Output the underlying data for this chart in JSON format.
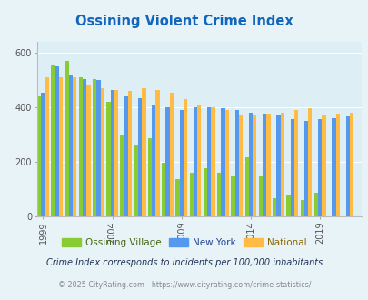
{
  "title": "Ossining Violent Crime Index",
  "title_color": "#1166bb",
  "years": [
    1999,
    2000,
    2001,
    2002,
    2003,
    2004,
    2005,
    2006,
    2007,
    2008,
    2009,
    2010,
    2011,
    2012,
    2013,
    2014,
    2015,
    2016,
    2017,
    2018,
    2019,
    2020,
    2021
  ],
  "ossining": [
    440,
    555,
    570,
    510,
    505,
    420,
    300,
    260,
    285,
    195,
    135,
    160,
    175,
    160,
    145,
    215,
    145,
    65,
    80,
    60,
    85,
    0,
    0
  ],
  "new_york": [
    455,
    550,
    520,
    505,
    500,
    465,
    440,
    435,
    410,
    400,
    390,
    400,
    400,
    395,
    390,
    380,
    375,
    370,
    355,
    350,
    355,
    360,
    365
  ],
  "national": [
    510,
    510,
    510,
    480,
    470,
    465,
    460,
    470,
    465,
    455,
    430,
    405,
    400,
    390,
    370,
    370,
    375,
    380,
    390,
    395,
    370,
    375,
    380
  ],
  "ossining_color": "#88cc33",
  "new_york_color": "#5599ee",
  "national_color": "#ffbb44",
  "bg_color": "#e8f3f8",
  "plot_bg": "#ddeef5",
  "ylabel_ticks": [
    0,
    200,
    400,
    600
  ],
  "ylim": [
    0,
    640
  ],
  "footnote1": "Crime Index corresponds to incidents per 100,000 inhabitants",
  "footnote2": "© 2025 CityRating.com - https://www.cityrating.com/crime-statistics/",
  "legend_labels": [
    "Ossining Village",
    "New York",
    "National"
  ],
  "legend_text_colors": [
    "#446611",
    "#224499",
    "#886600"
  ],
  "bar_width": 0.28
}
